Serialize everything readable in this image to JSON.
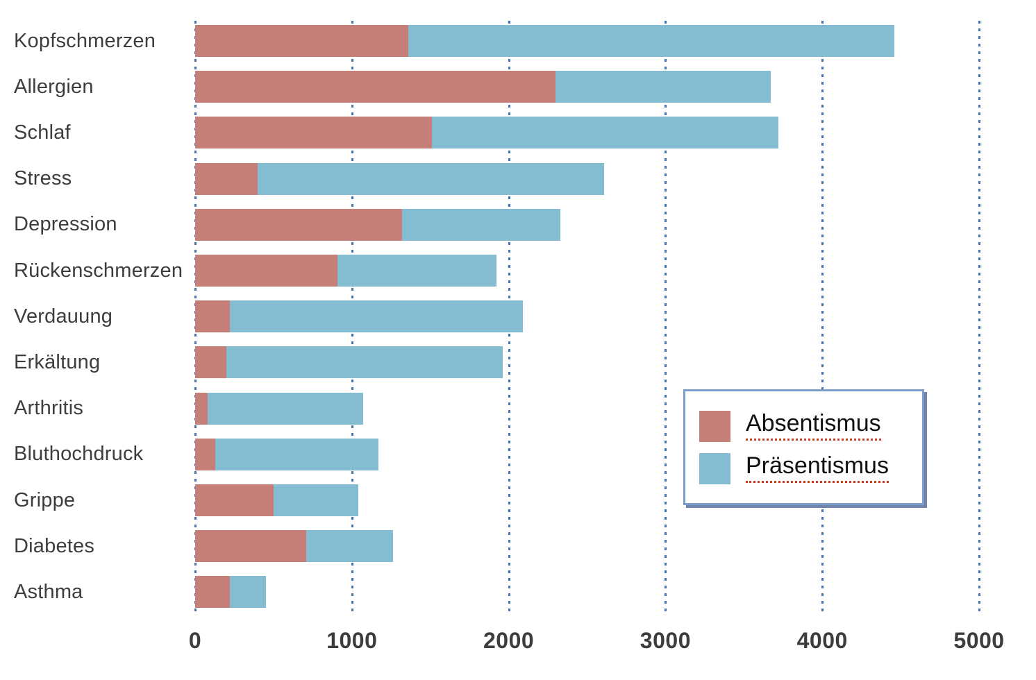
{
  "chart_data": {
    "type": "bar",
    "orientation": "horizontal",
    "stacked": true,
    "title": "",
    "xlabel": "",
    "ylabel": "",
    "categories": [
      "Kopfschmerzen",
      "Allergien",
      "Schlaf",
      "Stress",
      "Depression",
      "Rückenschmerzen",
      "Verdauung",
      "Erkältung",
      "Arthritis",
      "Bluthochdruck",
      "Grippe",
      "Diabetes",
      "Asthma"
    ],
    "series": [
      {
        "name": "Absentismus",
        "color": "#c67e78",
        "values": [
          1360,
          2300,
          1510,
          400,
          1320,
          910,
          220,
          200,
          80,
          130,
          500,
          710,
          220
        ]
      },
      {
        "name": "Präsentismus",
        "color": "#84bcd2",
        "values": [
          3100,
          1370,
          2210,
          2210,
          1010,
          1010,
          1870,
          1760,
          990,
          1040,
          540,
          550,
          230
        ]
      }
    ],
    "x_ticks": [
      "0",
      "1000",
      "2000",
      "3000",
      "4000",
      "5000"
    ],
    "xlim": [
      0,
      5000
    ],
    "grid": "vertical-dotted",
    "legend_position": "inside-middle-right",
    "legend_entries": [
      "Absentismus",
      "Präsentismus"
    ]
  },
  "colors": {
    "absentismus": "#c67e78",
    "praesentismus": "#84bcd2",
    "gridline": "#4576b4",
    "axis_text": "#3d3d3d",
    "legend_border": "#7e9cc9",
    "legend_underline": "#cc3a20",
    "background": "#ffffff"
  }
}
